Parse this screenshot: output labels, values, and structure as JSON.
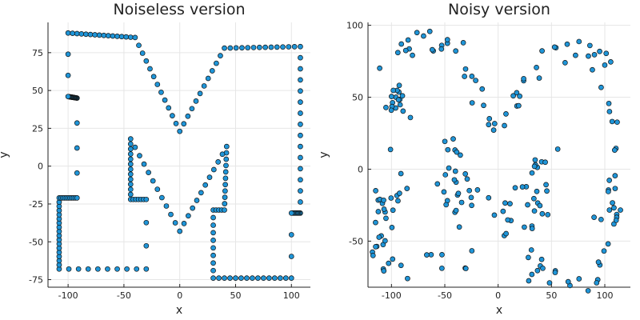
{
  "colors": {
    "marker": "#1f95d8",
    "marker_edge": "#111111",
    "grid": "#e6e6e6",
    "axis": "#222222"
  },
  "chart_data": [
    {
      "type": "scatter",
      "title": "Noiseless version",
      "xlabel": "x",
      "ylabel": "y",
      "xlim": [
        -118,
        117
      ],
      "ylim": [
        -80,
        95
      ],
      "xticks": [
        -100,
        -50,
        0,
        50,
        100
      ],
      "yticks": [
        -75,
        -50,
        -25,
        0,
        25,
        50,
        75
      ],
      "grid": true,
      "legend": "none",
      "outline": [
        [
          -100,
          88
        ],
        [
          -40,
          85
        ],
        [
          0,
          23
        ],
        [
          40,
          78
        ],
        [
          108,
          79
        ],
        [
          108,
          -31
        ],
        [
          100,
          -31
        ],
        [
          100,
          -74
        ],
        [
          30,
          -74
        ],
        [
          30,
          -29
        ],
        [
          40,
          -29
        ],
        [
          42,
          13
        ],
        [
          0,
          -43
        ],
        [
          -44,
          18
        ],
        [
          -44,
          -22
        ],
        [
          -30,
          -22
        ],
        [
          -30,
          -68
        ],
        [
          -108,
          -68
        ],
        [
          -108,
          -21
        ],
        [
          -92,
          -21
        ],
        [
          -92,
          45
        ],
        [
          -100,
          46
        ]
      ],
      "points_per_segment": [
        15,
        12,
        11,
        13,
        15,
        9,
        3,
        14,
        9,
        4,
        10,
        11,
        11,
        12,
        6,
        3,
        9,
        17,
        10,
        4,
        14,
        3
      ]
    },
    {
      "type": "scatter",
      "title": "Noisy version",
      "xlabel": "x",
      "ylabel": "y",
      "xlim": [
        -122,
        124
      ],
      "ylim": [
        -82,
        102
      ],
      "xticks": [
        -100,
        -50,
        0,
        50,
        100
      ],
      "yticks": [
        -50,
        0,
        50,
        100
      ],
      "grid": true,
      "legend": "none",
      "outline": [
        [
          -100,
          88
        ],
        [
          -40,
          85
        ],
        [
          0,
          23
        ],
        [
          40,
          78
        ],
        [
          108,
          79
        ],
        [
          108,
          -31
        ],
        [
          100,
          -31
        ],
        [
          100,
          -74
        ],
        [
          30,
          -74
        ],
        [
          30,
          -29
        ],
        [
          40,
          -29
        ],
        [
          42,
          13
        ],
        [
          0,
          -43
        ],
        [
          -44,
          18
        ],
        [
          -44,
          -22
        ],
        [
          -30,
          -22
        ],
        [
          -30,
          -68
        ],
        [
          -108,
          -68
        ],
        [
          -108,
          -21
        ],
        [
          -92,
          -21
        ],
        [
          -92,
          45
        ],
        [
          -100,
          46
        ]
      ],
      "points_per_segment": [
        15,
        12,
        11,
        13,
        15,
        9,
        3,
        14,
        9,
        4,
        10,
        11,
        11,
        12,
        6,
        3,
        9,
        17,
        10,
        4,
        14,
        3
      ],
      "noise_sd": 6
    }
  ]
}
